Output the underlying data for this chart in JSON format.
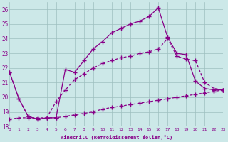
{
  "xlabel": "Windchill (Refroidissement éolien,°C)",
  "background_color": "#cce8e8",
  "line_color": "#880088",
  "grid_color": "#9dbfbf",
  "ylim": [
    18,
    26.5
  ],
  "xlim": [
    0,
    23
  ],
  "yticks": [
    18,
    19,
    20,
    21,
    22,
    23,
    24,
    25,
    26
  ],
  "xticks": [
    0,
    1,
    2,
    3,
    4,
    5,
    6,
    7,
    8,
    9,
    10,
    11,
    12,
    13,
    14,
    15,
    16,
    17,
    18,
    19,
    20,
    21,
    22,
    23
  ],
  "line1_x": [
    0,
    1,
    2,
    3,
    4,
    5,
    6,
    7,
    8,
    9,
    10,
    11,
    12,
    13,
    14,
    15,
    16,
    17,
    18,
    19,
    20,
    21,
    22,
    23
  ],
  "line1_y": [
    21.7,
    19.9,
    18.7,
    18.5,
    18.6,
    18.6,
    21.9,
    21.7,
    22.5,
    23.3,
    23.8,
    24.4,
    24.7,
    25.0,
    25.2,
    25.5,
    26.1,
    24.1,
    23.0,
    22.9,
    21.1,
    20.6,
    20.5,
    20.5
  ],
  "line2_x": [
    0,
    1,
    2,
    3,
    4,
    5,
    6,
    7,
    8,
    9,
    10,
    11,
    12,
    13,
    14,
    15,
    16,
    17,
    18,
    19,
    20,
    21,
    22,
    23
  ],
  "line2_y": [
    21.7,
    19.9,
    18.7,
    18.5,
    18.6,
    19.7,
    20.5,
    21.2,
    21.6,
    22.0,
    22.3,
    22.5,
    22.7,
    22.8,
    23.0,
    23.1,
    23.3,
    24.0,
    22.8,
    22.6,
    22.5,
    21.0,
    20.6,
    20.5
  ],
  "line3_x": [
    0,
    1,
    2,
    3,
    4,
    5,
    6,
    7,
    8,
    9,
    10,
    11,
    12,
    13,
    14,
    15,
    16,
    17,
    18,
    19,
    20,
    21,
    22,
    23
  ],
  "line3_y": [
    18.5,
    18.6,
    18.6,
    18.6,
    18.6,
    18.6,
    18.7,
    18.8,
    18.9,
    19.0,
    19.2,
    19.3,
    19.4,
    19.5,
    19.6,
    19.7,
    19.8,
    19.9,
    20.0,
    20.1,
    20.2,
    20.3,
    20.4,
    20.5
  ]
}
